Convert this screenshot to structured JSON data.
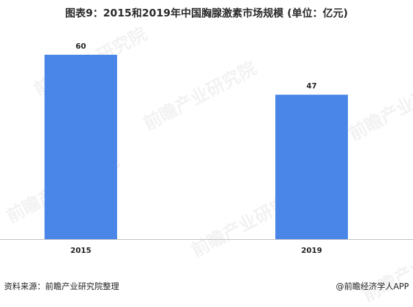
{
  "chart_data": {
    "type": "bar",
    "title": "图表9：2015和2019年中国胸腺激素市场规模 (单位：亿元)",
    "categories": [
      "2015",
      "2019"
    ],
    "values": [
      60,
      47
    ],
    "data_labels": [
      "60",
      "47"
    ],
    "ylim": [
      0,
      66
    ],
    "bar_color": "#4a86e8",
    "grid": false,
    "legend": "none"
  },
  "footer": {
    "source": "资料来源：前瞻产业研究院整理",
    "credit": "@前瞻经济学人APP"
  },
  "watermark_text": "前瞻产业研究院"
}
